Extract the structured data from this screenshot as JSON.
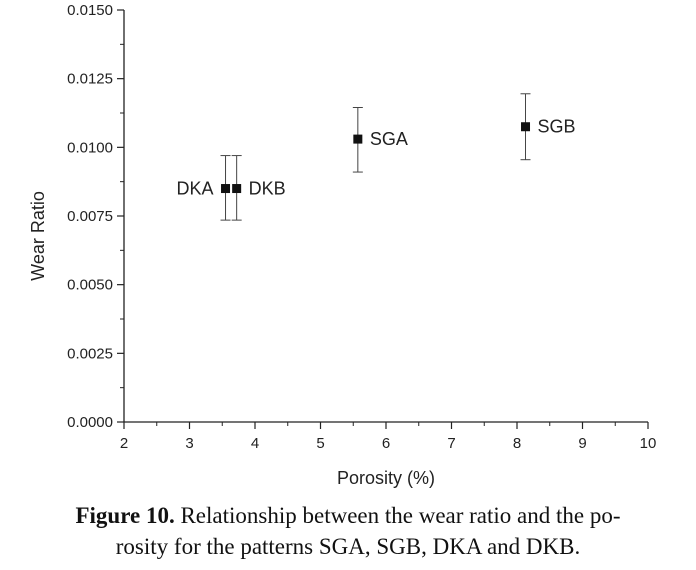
{
  "chart_data": {
    "type": "scatter",
    "xlabel": "Porosity (%)",
    "ylabel": "Wear Ratio",
    "xlim": [
      2,
      10
    ],
    "ylim": [
      0,
      0.015
    ],
    "x_ticks": [
      "2",
      "3",
      "4",
      "5",
      "6",
      "7",
      "8",
      "9",
      "10"
    ],
    "y_ticks": [
      "0.0000",
      "0.0025",
      "0.0050",
      "0.0075",
      "0.0100",
      "0.0125",
      "0.0150"
    ],
    "grid": false,
    "points": [
      {
        "label": "DKA",
        "x": 3.55,
        "y": 0.0085,
        "y_err_low": 0.00735,
        "y_err_high": 0.0097
      },
      {
        "label": "DKB",
        "x": 3.72,
        "y": 0.0085,
        "y_err_low": 0.00735,
        "y_err_high": 0.0097
      },
      {
        "label": "SGA",
        "x": 5.57,
        "y": 0.0103,
        "y_err_low": 0.0091,
        "y_err_high": 0.01145
      },
      {
        "label": "SGB",
        "x": 8.13,
        "y": 0.01075,
        "y_err_low": 0.00955,
        "y_err_high": 0.01195
      }
    ],
    "marker": "square",
    "marker_color": "#111111"
  },
  "caption": {
    "label": "Figure 10.",
    "line1": "Relationship between the wear ratio and the po-",
    "line2": "rosity for the patterns SGA, SGB, DKA and DKB."
  }
}
